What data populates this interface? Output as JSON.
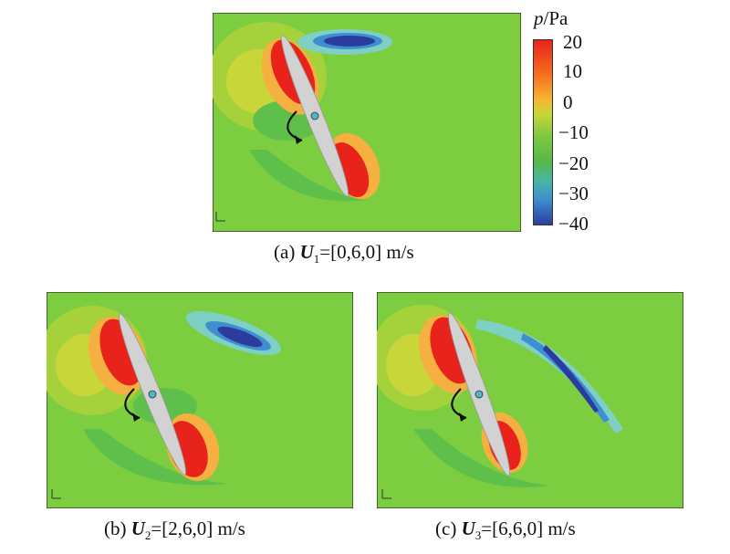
{
  "colorbar": {
    "variable": "p",
    "unit": "/Pa",
    "ticks": [
      "20",
      "10",
      "0",
      "−10",
      "−20",
      "−30",
      "−40"
    ],
    "colors": [
      "#e8231c",
      "#f56b1e",
      "#f9b332",
      "#c8d63a",
      "#7fc742",
      "#55b84a",
      "#48b6a3",
      "#3f8fd0",
      "#3558b8",
      "#2c3c9e"
    ]
  },
  "panels": [
    {
      "label": "(a)",
      "var": "U",
      "sub": "1",
      "value": "=[0,6,0] m/s"
    },
    {
      "label": "(b)",
      "var": "U",
      "sub": "2",
      "value": "=[2,6,0] m/s"
    },
    {
      "label": "(c)",
      "var": "U",
      "sub": "3",
      "value": "=[6,6,0] m/s"
    }
  ],
  "colors": {
    "field": "#7ccd3f",
    "high": "#e8231c",
    "low": "#2c3c9e",
    "blade": "#d2d2d2"
  }
}
